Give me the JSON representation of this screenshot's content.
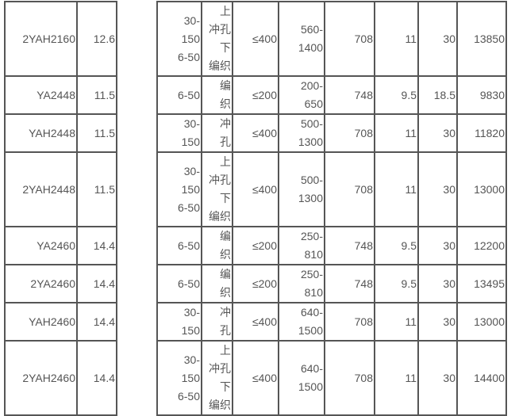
{
  "table": {
    "rows": [
      {
        "cells": [
          "2YAH2160",
          "12.6",
          "",
          "30-\n150\n6-50",
          "上\n冲孔\n下\n编织",
          "≤400",
          "560-\n1400",
          "708",
          "11",
          "30",
          "13850"
        ]
      },
      {
        "cells": [
          "YA2448",
          "11.5",
          "",
          "6-50",
          "编\n织",
          "≤200",
          "200-\n650",
          "748",
          "9.5",
          "18.5",
          "9830"
        ]
      },
      {
        "cells": [
          "YAH2448",
          "11.5",
          "",
          "30-\n150",
          "冲\n孔",
          "≤400",
          "500-\n1300",
          "708",
          "11",
          "30",
          "11820"
        ]
      },
      {
        "cells": [
          "2YAH2448",
          "11.5",
          "",
          "30-\n150\n6-50",
          "上\n冲孔\n下\n编织",
          "≤400",
          "500-\n1300",
          "708",
          "11",
          "30",
          "13000"
        ]
      },
      {
        "cells": [
          "YA2460",
          "14.4",
          "",
          "6-50",
          "编\n织",
          "≤200",
          "250-\n810",
          "748",
          "9.5",
          "30",
          "12200"
        ]
      },
      {
        "cells": [
          "2YA2460",
          "14.4",
          "",
          "6-50",
          "编\n织",
          "≤200",
          "250-\n810",
          "748",
          "9.5",
          "30",
          "13495"
        ]
      },
      {
        "cells": [
          "YAH2460",
          "14.4",
          "",
          "30-\n150",
          "冲\n孔",
          "≤400",
          "640-\n1500",
          "708",
          "11",
          "30",
          "13000"
        ]
      },
      {
        "cells": [
          "2YAH2460",
          "14.4",
          "",
          "30-\n150\n6-50",
          "上\n冲孔\n下\n编织",
          "≤400",
          "640-\n1500",
          "708",
          "11",
          "30",
          "14400"
        ]
      }
    ]
  }
}
